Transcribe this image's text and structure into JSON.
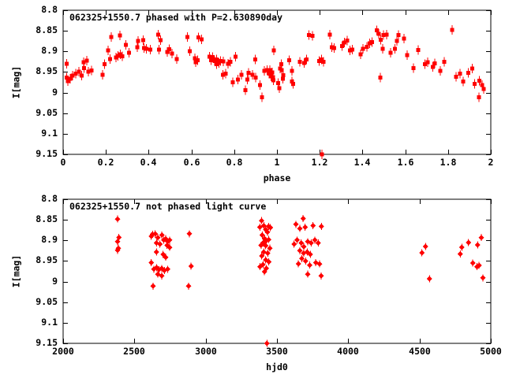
{
  "colors": {
    "background": "#ffffff",
    "axis": "#000000",
    "text": "#000000",
    "points": "#ff0000"
  },
  "chart_data": [
    {
      "type": "scatter",
      "title": "062325+1550.7 phased with P=2.630890day",
      "xlabel": "phase",
      "ylabel": "I[mag]",
      "xlim": [
        0,
        2
      ],
      "ylim_top_to_bottom": [
        8.8,
        9.15
      ],
      "y_axis_inverted": true,
      "grid": false,
      "legend": "none",
      "marker": "filled-square-with-yerrorbar",
      "marker_color": "#ff0000",
      "xticks": {
        "values": [
          0,
          0.2,
          0.4,
          0.6,
          0.8,
          1,
          1.2,
          1.4,
          1.6,
          1.8,
          2
        ],
        "labels": [
          "0",
          "0.2",
          "0.4",
          "0.6",
          "0.8",
          "1",
          "1.2",
          "1.4",
          "1.6",
          "1.8",
          "2"
        ]
      },
      "yticks": {
        "values": [
          8.8,
          8.85,
          8.9,
          8.95,
          9,
          9.05,
          9.1,
          9.15
        ],
        "labels": [
          "8.8",
          "8.85",
          "8.9",
          "8.95",
          "9",
          "9.05",
          "9.1",
          "9.15"
        ]
      },
      "points": [
        [
          0.016,
          8.93
        ],
        [
          0.016,
          8.964
        ],
        [
          0.023,
          8.972
        ],
        [
          0.034,
          8.966
        ],
        [
          0.045,
          8.959
        ],
        [
          0.059,
          8.954
        ],
        [
          0.073,
          8.949
        ],
        [
          0.086,
          8.959
        ],
        [
          0.096,
          8.926
        ],
        [
          0.098,
          8.941
        ],
        [
          0.111,
          8.922
        ],
        [
          0.119,
          8.949
        ],
        [
          0.132,
          8.946
        ],
        [
          0.185,
          8.957
        ],
        [
          0.193,
          8.931
        ],
        [
          0.21,
          8.898
        ],
        [
          0.22,
          8.919
        ],
        [
          0.226,
          8.865
        ],
        [
          0.247,
          8.915
        ],
        [
          0.256,
          8.911
        ],
        [
          0.266,
          8.861
        ],
        [
          0.267,
          8.907
        ],
        [
          0.277,
          8.912
        ],
        [
          0.293,
          8.884
        ],
        [
          0.309,
          8.903
        ],
        [
          0.346,
          8.89
        ],
        [
          0.351,
          8.875
        ],
        [
          0.374,
          8.873
        ],
        [
          0.379,
          8.892
        ],
        [
          0.389,
          8.894
        ],
        [
          0.408,
          8.896
        ],
        [
          0.444,
          8.859
        ],
        [
          0.448,
          8.896
        ],
        [
          0.456,
          8.873
        ],
        [
          0.488,
          8.901
        ],
        [
          0.497,
          8.895
        ],
        [
          0.509,
          8.905
        ],
        [
          0.531,
          8.919
        ],
        [
          0.582,
          8.865
        ],
        [
          0.592,
          8.899
        ],
        [
          0.617,
          8.917
        ],
        [
          0.62,
          8.926
        ],
        [
          0.629,
          8.921
        ],
        [
          0.632,
          8.866
        ],
        [
          0.648,
          8.871
        ],
        [
          0.684,
          8.913
        ],
        [
          0.691,
          8.921
        ],
        [
          0.699,
          8.914
        ],
        [
          0.708,
          8.923
        ],
        [
          0.717,
          8.931
        ],
        [
          0.718,
          8.92
        ],
        [
          0.728,
          8.928
        ],
        [
          0.737,
          8.923
        ],
        [
          0.748,
          8.957
        ],
        [
          0.749,
          8.924
        ],
        [
          0.76,
          8.954
        ],
        [
          0.772,
          8.93
        ],
        [
          0.783,
          8.925
        ],
        [
          0.793,
          8.975
        ],
        [
          0.807,
          8.913
        ],
        [
          0.817,
          8.968
        ],
        [
          0.834,
          8.957
        ],
        [
          0.852,
          8.994
        ],
        [
          0.861,
          8.968
        ],
        [
          0.867,
          8.952
        ],
        [
          0.886,
          8.957
        ],
        [
          0.898,
          8.92
        ],
        [
          0.901,
          8.964
        ],
        [
          0.92,
          8.982
        ],
        [
          0.929,
          9.011
        ],
        [
          0.941,
          8.947
        ],
        [
          0.953,
          8.945
        ],
        [
          0.963,
          8.954
        ],
        [
          0.966,
          8.945
        ],
        [
          0.973,
          8.961
        ],
        [
          0.978,
          8.951
        ],
        [
          0.982,
          8.963
        ],
        [
          0.984,
          8.97
        ],
        [
          0.985,
          8.898
        ],
        [
          1.005,
          8.977
        ],
        [
          1.011,
          8.989
        ],
        [
          1.014,
          8.942
        ],
        [
          1.021,
          8.931
        ],
        [
          1.023,
          8.945
        ],
        [
          1.027,
          8.966
        ],
        [
          1.03,
          8.958
        ],
        [
          1.058,
          8.921
        ],
        [
          1.07,
          8.947
        ],
        [
          1.071,
          8.973
        ],
        [
          1.076,
          8.979
        ],
        [
          1.107,
          8.925
        ],
        [
          1.127,
          8.928
        ],
        [
          1.138,
          8.92
        ],
        [
          1.15,
          8.86
        ],
        [
          1.166,
          8.862
        ],
        [
          1.197,
          8.923
        ],
        [
          1.208,
          8.92
        ],
        [
          1.211,
          9.151
        ],
        [
          1.217,
          8.925
        ],
        [
          1.247,
          8.859
        ],
        [
          1.257,
          8.89
        ],
        [
          1.268,
          8.892
        ],
        [
          1.305,
          8.887
        ],
        [
          1.315,
          8.878
        ],
        [
          1.328,
          8.874
        ],
        [
          1.341,
          8.898
        ],
        [
          1.353,
          8.896
        ],
        [
          1.392,
          8.907
        ],
        [
          1.403,
          8.894
        ],
        [
          1.42,
          8.889
        ],
        [
          1.433,
          8.88
        ],
        [
          1.445,
          8.877
        ],
        [
          1.466,
          8.849
        ],
        [
          1.476,
          8.857
        ],
        [
          1.483,
          8.964
        ],
        [
          1.486,
          8.872
        ],
        [
          1.494,
          8.894
        ],
        [
          1.498,
          8.86
        ],
        [
          1.512,
          8.859
        ],
        [
          1.531,
          8.903
        ],
        [
          1.551,
          8.894
        ],
        [
          1.561,
          8.875
        ],
        [
          1.568,
          8.86
        ],
        [
          1.595,
          8.869
        ],
        [
          1.609,
          8.909
        ],
        [
          1.638,
          8.941
        ],
        [
          1.661,
          8.897
        ],
        [
          1.691,
          8.931
        ],
        [
          1.705,
          8.926
        ],
        [
          1.729,
          8.938
        ],
        [
          1.738,
          8.929
        ],
        [
          1.764,
          8.947
        ],
        [
          1.782,
          8.925
        ],
        [
          1.819,
          8.848
        ],
        [
          1.837,
          8.962
        ],
        [
          1.857,
          8.954
        ],
        [
          1.871,
          8.973
        ],
        [
          1.894,
          8.952
        ],
        [
          1.913,
          8.942
        ],
        [
          1.925,
          8.979
        ],
        [
          1.944,
          9.011
        ],
        [
          1.946,
          8.971
        ],
        [
          1.959,
          8.982
        ],
        [
          1.966,
          8.991
        ]
      ]
    },
    {
      "type": "scatter",
      "title": "062325+1550.7 not phased light curve",
      "xlabel": "hjd0",
      "ylabel": "I[mag]",
      "xlim": [
        2000,
        5000
      ],
      "ylim_top_to_bottom": [
        8.8,
        9.15
      ],
      "y_axis_inverted": true,
      "grid": false,
      "legend": "none",
      "marker": "filled-diamond-with-yerrorbar",
      "marker_color": "#ff0000",
      "xticks": {
        "values": [
          2000,
          2500,
          3000,
          3500,
          4000,
          4500,
          5000
        ],
        "labels": [
          "2000",
          "2500",
          "3000",
          "3500",
          "4000",
          "4500",
          "5000"
        ]
      },
      "yticks": {
        "values": [
          8.8,
          8.85,
          8.9,
          8.95,
          9,
          9.05,
          9.1,
          9.15
        ],
        "labels": [
          "8.8",
          "8.85",
          "8.9",
          "8.95",
          "9",
          "9.05",
          "9.1",
          "9.15"
        ]
      },
      "points": [
        [
          2382,
          8.848
        ],
        [
          2391,
          8.893
        ],
        [
          2382,
          8.903
        ],
        [
          2387,
          8.919
        ],
        [
          2382,
          8.924
        ],
        [
          2618,
          8.89
        ],
        [
          2627,
          8.885
        ],
        [
          2646,
          8.884
        ],
        [
          2664,
          8.893
        ],
        [
          2692,
          8.887
        ],
        [
          2705,
          8.899
        ],
        [
          2720,
          8.896
        ],
        [
          2734,
          8.903
        ],
        [
          2747,
          8.899
        ],
        [
          2655,
          8.906
        ],
        [
          2679,
          8.909
        ],
        [
          2729,
          8.912
        ],
        [
          2747,
          8.917
        ],
        [
          2655,
          8.928
        ],
        [
          2701,
          8.934
        ],
        [
          2720,
          8.941
        ],
        [
          2618,
          8.954
        ],
        [
          2637,
          8.97
        ],
        [
          2655,
          8.966
        ],
        [
          2673,
          8.971
        ],
        [
          2692,
          8.968
        ],
        [
          2710,
          8.973
        ],
        [
          2734,
          8.97
        ],
        [
          2664,
          8.982
        ],
        [
          2692,
          8.986
        ],
        [
          2631,
          9.011
        ],
        [
          2886,
          8.884
        ],
        [
          2898,
          8.963
        ],
        [
          2880,
          9.011
        ],
        [
          3380,
          8.868
        ],
        [
          3393,
          8.852
        ],
        [
          3408,
          8.864
        ],
        [
          3421,
          8.874
        ],
        [
          3441,
          8.866
        ],
        [
          3454,
          8.869
        ],
        [
          3434,
          8.88
        ],
        [
          3397,
          8.887
        ],
        [
          3413,
          8.896
        ],
        [
          3426,
          8.901
        ],
        [
          3443,
          8.898
        ],
        [
          3402,
          8.906
        ],
        [
          3388,
          8.912
        ],
        [
          3421,
          8.913
        ],
        [
          3449,
          8.919
        ],
        [
          3408,
          8.928
        ],
        [
          3435,
          8.931
        ],
        [
          3393,
          8.938
        ],
        [
          3421,
          8.947
        ],
        [
          3443,
          8.952
        ],
        [
          3402,
          8.959
        ],
        [
          3380,
          8.964
        ],
        [
          3426,
          8.968
        ],
        [
          3412,
          8.976
        ],
        [
          3430,
          9.15
        ],
        [
          3620,
          8.909
        ],
        [
          3633,
          8.861
        ],
        [
          3642,
          8.899
        ],
        [
          3650,
          8.957
        ],
        [
          3660,
          8.871
        ],
        [
          3660,
          8.925
        ],
        [
          3670,
          8.906
        ],
        [
          3675,
          8.944
        ],
        [
          3684,
          8.847
        ],
        [
          3688,
          8.915
        ],
        [
          3688,
          8.931
        ],
        [
          3697,
          8.868
        ],
        [
          3701,
          8.95
        ],
        [
          3712,
          8.928
        ],
        [
          3716,
          8.903
        ],
        [
          3716,
          8.982
        ],
        [
          3730,
          8.96
        ],
        [
          3734,
          8.934
        ],
        [
          3740,
          8.906
        ],
        [
          3753,
          8.864
        ],
        [
          3767,
          8.899
        ],
        [
          3772,
          8.954
        ],
        [
          3790,
          8.906
        ],
        [
          3799,
          8.957
        ],
        [
          3809,
          8.986
        ],
        [
          3812,
          8.866
        ],
        [
          4517,
          8.93
        ],
        [
          4542,
          8.915
        ],
        [
          4570,
          8.993
        ],
        [
          4786,
          8.933
        ],
        [
          4797,
          8.917
        ],
        [
          4843,
          8.905
        ],
        [
          4874,
          8.955
        ],
        [
          4902,
          8.964
        ],
        [
          4908,
          8.911
        ],
        [
          4918,
          8.961
        ],
        [
          4934,
          8.893
        ],
        [
          4944,
          8.991
        ]
      ]
    }
  ]
}
